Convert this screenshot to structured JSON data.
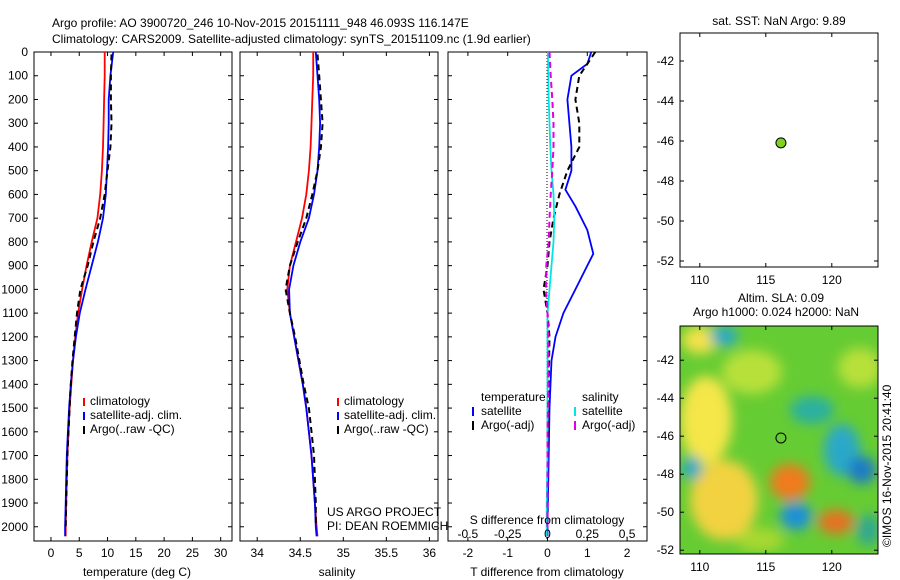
{
  "header": {
    "line1": "Argo profile: AO 3900720_246 10-Nov-2015 20151111_948 46.093S 116.147E",
    "line2": "Climatology: CARS2009. Satellite-adjusted climatology: synTS_20151109.nc (1.9d earlier)"
  },
  "colors": {
    "climatology": "#ff0000",
    "satellite": "#0000ff",
    "argo": "#000000",
    "sat_salinity": "#00e5e5",
    "argo_salinity": "#e000e0",
    "float_marker": "#7ed321"
  },
  "chart_data": [
    {
      "id": "temperature",
      "type": "line",
      "xlabel": "temperature (deg C)",
      "ylabel": "",
      "xlim": [
        -3,
        32
      ],
      "ylim": [
        2060,
        0
      ],
      "xticks": [
        "0",
        "5",
        "10",
        "15",
        "20",
        "25",
        "30"
      ],
      "yticks": [
        "0",
        "100",
        "200",
        "300",
        "400",
        "500",
        "600",
        "700",
        "800",
        "900",
        "1000",
        "1100",
        "1200",
        "1300",
        "1400",
        "1500",
        "1600",
        "1700",
        "1800",
        "1900",
        "2000"
      ],
      "legend": [
        "climatology",
        "satellite-adj. clim.",
        "Argo(..raw -QC)"
      ],
      "legend_placement": "center-right",
      "series": [
        {
          "name": "climatology",
          "color": "#ff0000",
          "style": "solid",
          "points": [
            [
              9.5,
              0
            ],
            [
              9.5,
              100
            ],
            [
              9.4,
              200
            ],
            [
              9.3,
              300
            ],
            [
              9.2,
              400
            ],
            [
              9.0,
              500
            ],
            [
              8.7,
              600
            ],
            [
              8.2,
              700
            ],
            [
              7.2,
              800
            ],
            [
              6.3,
              900
            ],
            [
              5.5,
              1000
            ],
            [
              4.8,
              1100
            ],
            [
              4.3,
              1200
            ],
            [
              3.9,
              1300
            ],
            [
              3.6,
              1400
            ],
            [
              3.3,
              1500
            ],
            [
              3.1,
              1600
            ],
            [
              2.9,
              1700
            ],
            [
              2.8,
              1800
            ],
            [
              2.7,
              1900
            ],
            [
              2.6,
              2000
            ],
            [
              2.6,
              2040
            ]
          ]
        },
        {
          "name": "satellite-adj. clim.",
          "color": "#0000ff",
          "style": "solid",
          "points": [
            [
              11.0,
              0
            ],
            [
              10.5,
              100
            ],
            [
              10.2,
              200
            ],
            [
              10.2,
              300
            ],
            [
              10.1,
              400
            ],
            [
              9.9,
              500
            ],
            [
              9.7,
              600
            ],
            [
              9.2,
              700
            ],
            [
              8.3,
              800
            ],
            [
              7.2,
              900
            ],
            [
              6.1,
              1000
            ],
            [
              5.1,
              1100
            ],
            [
              4.4,
              1200
            ],
            [
              3.9,
              1300
            ],
            [
              3.5,
              1400
            ],
            [
              3.2,
              1500
            ],
            [
              3.0,
              1600
            ],
            [
              2.8,
              1700
            ],
            [
              2.7,
              1800
            ],
            [
              2.6,
              1900
            ],
            [
              2.5,
              2000
            ],
            [
              2.5,
              2040
            ]
          ]
        },
        {
          "name": "Argo(..raw -QC)",
          "color": "#000000",
          "style": "dashed",
          "points": [
            [
              10.7,
              10
            ],
            [
              10.6,
              100
            ],
            [
              10.6,
              200
            ],
            [
              10.7,
              300
            ],
            [
              10.5,
              400
            ],
            [
              10.0,
              500
            ],
            [
              9.5,
              600
            ],
            [
              8.7,
              700
            ],
            [
              7.5,
              800
            ],
            [
              6.5,
              900
            ],
            [
              5.2,
              1000
            ],
            [
              4.6,
              1100
            ],
            [
              4.2,
              1200
            ],
            [
              3.8,
              1300
            ],
            [
              3.5,
              1400
            ],
            [
              3.3,
              1500
            ],
            [
              3.1,
              1600
            ],
            [
              2.9,
              1700
            ],
            [
              2.8,
              1800
            ],
            [
              2.7,
              1900
            ],
            [
              2.6,
              2000
            ]
          ]
        }
      ]
    },
    {
      "id": "salinity",
      "type": "line",
      "xlabel": "salinity",
      "ylabel": "",
      "xlim": [
        33.8,
        36.1
      ],
      "ylim": [
        2060,
        0
      ],
      "xticks": [
        "34",
        "34.5",
        "35",
        "35.5",
        "36"
      ],
      "legend": [
        "climatology",
        "satellite-adj. clim.",
        "Argo(..raw -QC)"
      ],
      "legend_placement": "center-right",
      "annotation": [
        "US ARGO PROJECT",
        "PI: DEAN ROEMMICH"
      ],
      "series": [
        {
          "name": "climatology",
          "color": "#ff0000",
          "style": "solid",
          "points": [
            [
              34.65,
              0
            ],
            [
              34.65,
              100
            ],
            [
              34.64,
              200
            ],
            [
              34.63,
              300
            ],
            [
              34.62,
              400
            ],
            [
              34.6,
              500
            ],
            [
              34.57,
              600
            ],
            [
              34.52,
              700
            ],
            [
              34.45,
              800
            ],
            [
              34.38,
              900
            ],
            [
              34.35,
              1000
            ],
            [
              34.38,
              1100
            ],
            [
              34.43,
              1200
            ],
            [
              34.48,
              1300
            ],
            [
              34.53,
              1400
            ],
            [
              34.57,
              1500
            ],
            [
              34.6,
              1600
            ],
            [
              34.63,
              1700
            ],
            [
              34.65,
              1800
            ],
            [
              34.67,
              1900
            ],
            [
              34.69,
              2000
            ],
            [
              34.7,
              2040
            ]
          ]
        },
        {
          "name": "satellite-adj. clim.",
          "color": "#0000ff",
          "style": "solid",
          "points": [
            [
              34.68,
              0
            ],
            [
              34.7,
              100
            ],
            [
              34.72,
              200
            ],
            [
              34.73,
              300
            ],
            [
              34.72,
              400
            ],
            [
              34.7,
              500
            ],
            [
              34.66,
              600
            ],
            [
              34.6,
              700
            ],
            [
              34.5,
              800
            ],
            [
              34.42,
              900
            ],
            [
              34.37,
              1000
            ],
            [
              34.38,
              1100
            ],
            [
              34.43,
              1200
            ],
            [
              34.48,
              1300
            ],
            [
              34.53,
              1400
            ],
            [
              34.57,
              1500
            ],
            [
              34.6,
              1600
            ],
            [
              34.63,
              1700
            ],
            [
              34.65,
              1800
            ],
            [
              34.67,
              1900
            ],
            [
              34.68,
              2000
            ],
            [
              34.69,
              2040
            ]
          ]
        },
        {
          "name": "Argo(..raw -QC)",
          "color": "#000000",
          "style": "dashed",
          "points": [
            [
              34.7,
              10
            ],
            [
              34.72,
              100
            ],
            [
              34.74,
              200
            ],
            [
              34.76,
              300
            ],
            [
              34.74,
              400
            ],
            [
              34.7,
              500
            ],
            [
              34.64,
              600
            ],
            [
              34.57,
              700
            ],
            [
              34.47,
              800
            ],
            [
              34.38,
              900
            ],
            [
              34.33,
              1000
            ],
            [
              34.38,
              1100
            ],
            [
              34.44,
              1200
            ],
            [
              34.49,
              1300
            ],
            [
              34.54,
              1400
            ],
            [
              34.6,
              1500
            ],
            [
              34.63,
              1600
            ],
            [
              34.66,
              1700
            ],
            [
              34.67,
              1800
            ],
            [
              34.68,
              1900
            ],
            [
              34.68,
              2000
            ]
          ]
        }
      ]
    },
    {
      "id": "difference",
      "type": "line",
      "xlabel": "T difference from climatology",
      "top_axis_label": "S difference from climatology",
      "xlim": [
        -2.5,
        2.5
      ],
      "ylim": [
        2060,
        0
      ],
      "xticks": [
        "-2",
        "-1",
        "0",
        "1",
        "2"
      ],
      "s_ticks": [
        "-0.5",
        "-0.25",
        "0",
        "0.25",
        "0.5"
      ],
      "legend_headers": [
        "temperature",
        "salinity"
      ],
      "legend": [
        "satellite",
        "Argo(-adj)",
        "satellite",
        "Argo(-adj)"
      ],
      "legend_placement": "lower-center",
      "series": [
        {
          "name": "satellite",
          "group": "temperature",
          "color": "#0000ff",
          "style": "solid",
          "points": [
            [
              1.1,
              0
            ],
            [
              1.0,
              50
            ],
            [
              0.6,
              100
            ],
            [
              0.5,
              200
            ],
            [
              0.55,
              300
            ],
            [
              0.6,
              400
            ],
            [
              0.6,
              500
            ],
            [
              0.45,
              580
            ],
            [
              0.7,
              650
            ],
            [
              1.0,
              750
            ],
            [
              1.15,
              850
            ],
            [
              1.0,
              900
            ],
            [
              0.7,
              1000
            ],
            [
              0.4,
              1100
            ],
            [
              0.2,
              1200
            ],
            [
              0.1,
              1300
            ],
            [
              0.05,
              1500
            ],
            [
              0.02,
              1800
            ],
            [
              0,
              2000
            ],
            [
              0,
              2040
            ]
          ]
        },
        {
          "name": "Argo(-adj)",
          "group": "temperature",
          "color": "#000000",
          "style": "dashed",
          "points": [
            [
              1.2,
              0
            ],
            [
              1.0,
              50
            ],
            [
              0.8,
              100
            ],
            [
              0.7,
              200
            ],
            [
              0.8,
              300
            ],
            [
              0.8,
              400
            ],
            [
              0.5,
              500
            ],
            [
              0.3,
              600
            ],
            [
              0.15,
              700
            ],
            [
              0.05,
              800
            ],
            [
              0,
              900
            ],
            [
              -0.1,
              1000
            ],
            [
              0,
              1100
            ],
            [
              0.05,
              1200
            ],
            [
              0.03,
              1400
            ],
            [
              0,
              1700
            ],
            [
              0,
              2000
            ]
          ]
        },
        {
          "name": "satellite",
          "group": "salinity",
          "color": "#00e5e5",
          "style": "solid",
          "points": [
            [
              0.01,
              0
            ],
            [
              0.02,
              100
            ],
            [
              0.03,
              200
            ],
            [
              0.05,
              300
            ],
            [
              0.07,
              400
            ],
            [
              0.1,
              500
            ],
            [
              0.15,
              600
            ],
            [
              0.17,
              700
            ],
            [
              0.15,
              800
            ],
            [
              0.1,
              900
            ],
            [
              0.05,
              1000
            ],
            [
              0,
              1100
            ],
            [
              0,
              1300
            ],
            [
              0,
              1500
            ],
            [
              0,
              1700
            ],
            [
              -0.02,
              1900
            ],
            [
              -0.02,
              2040
            ]
          ]
        },
        {
          "name": "Argo(-adj)",
          "group": "salinity",
          "color": "#e000e0",
          "style": "dashed",
          "points": [
            [
              0.05,
              0
            ],
            [
              0.08,
              100
            ],
            [
              0.12,
              200
            ],
            [
              0.15,
              300
            ],
            [
              0.15,
              400
            ],
            [
              0.12,
              500
            ],
            [
              0.08,
              600
            ],
            [
              0.05,
              700
            ],
            [
              0.03,
              800
            ],
            [
              -0.03,
              900
            ],
            [
              -0.04,
              1000
            ],
            [
              0,
              1100
            ],
            [
              0.02,
              1200
            ],
            [
              0.02,
              1400
            ],
            [
              0,
              1600
            ],
            [
              0,
              2000
            ]
          ]
        }
      ]
    },
    {
      "id": "sst_map",
      "type": "scatter",
      "title": "sat. SST: NaN  Argo: 9.89",
      "xlim": [
        108.5,
        123.5
      ],
      "ylim": [
        -52.3,
        -40.6
      ],
      "xticks": [
        "110",
        "115",
        "120"
      ],
      "yticks": [
        "-42",
        "-44",
        "-46",
        "-48",
        "-50",
        "-52"
      ],
      "points": [
        {
          "x": 116.147,
          "y": -46.093
        }
      ]
    },
    {
      "id": "sla_map",
      "type": "heatmap",
      "title_line1": "Altim. SLA: 0.09",
      "title_line2": "Argo h1000: 0.024  h2000: NaN",
      "xlim": [
        108.5,
        123.5
      ],
      "ylim": [
        -52.2,
        -40.2
      ],
      "xticks": [
        "110",
        "115",
        "120"
      ],
      "yticks": [
        "-42",
        "-44",
        "-46",
        "-48",
        "-50",
        "-52"
      ],
      "points": [
        {
          "x": 116.147,
          "y": -46.093
        }
      ],
      "side_label": "©IMOS 16-Nov-2015 20:41:40"
    }
  ]
}
